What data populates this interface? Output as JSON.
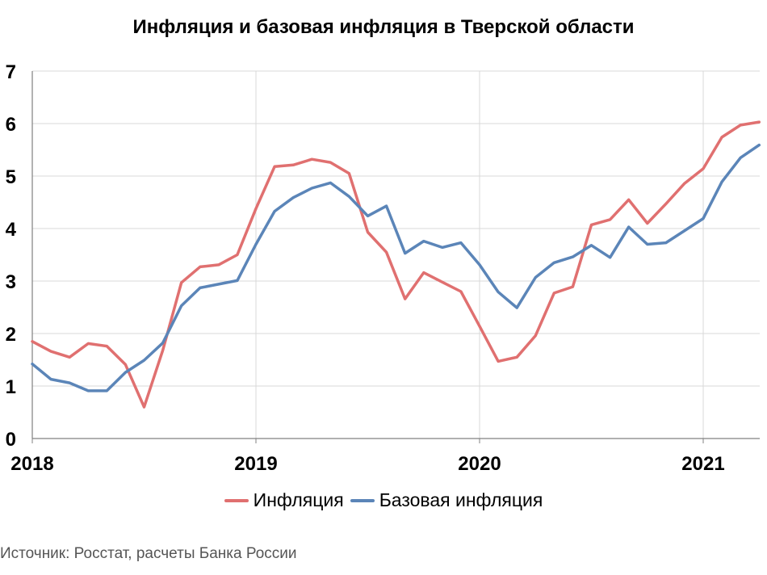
{
  "colors": {
    "inflation": "#E07070",
    "core": "#5B85B8",
    "grid": "#D9D9D9",
    "axis": "#808080"
  },
  "source": "Источник: Росстат, расчеты Банка России",
  "chart_data": {
    "type": "line",
    "title": "Инфляция и базовая инфляция в Тверской области",
    "xlabel": "",
    "ylabel": "",
    "ylim": [
      0,
      7
    ],
    "yticks": [
      "0",
      "1",
      "2",
      "3",
      "4",
      "5",
      "6",
      "7"
    ],
    "xticks": [
      "2018",
      "2019",
      "2020",
      "2021"
    ],
    "grid": true,
    "legend_position": "bottom",
    "x": [
      "2018-01",
      "2018-02",
      "2018-03",
      "2018-04",
      "2018-05",
      "2018-06",
      "2018-07",
      "2018-08",
      "2018-09",
      "2018-10",
      "2018-11",
      "2018-12",
      "2019-01",
      "2019-02",
      "2019-03",
      "2019-04",
      "2019-05",
      "2019-06",
      "2019-07",
      "2019-08",
      "2019-09",
      "2019-10",
      "2019-11",
      "2019-12",
      "2020-01",
      "2020-02",
      "2020-03",
      "2020-04",
      "2020-05",
      "2020-06",
      "2020-07",
      "2020-08",
      "2020-09",
      "2020-10",
      "2020-11",
      "2020-12",
      "2021-01",
      "2021-02",
      "2021-03",
      "2021-04"
    ],
    "series": [
      {
        "name": "Инфляция",
        "values": [
          1.85,
          1.66,
          1.55,
          1.81,
          1.76,
          1.41,
          0.6,
          1.68,
          2.97,
          3.27,
          3.31,
          3.5,
          4.38,
          5.18,
          5.21,
          5.32,
          5.26,
          5.05,
          3.93,
          3.55,
          2.66,
          3.16,
          2.98,
          2.8,
          2.14,
          1.47,
          1.55,
          1.96,
          2.77,
          2.89,
          4.07,
          4.17,
          4.55,
          4.1,
          4.47,
          4.86,
          5.14,
          5.74,
          5.97,
          6.03
        ]
      },
      {
        "name": "Базовая инфляция",
        "values": [
          1.42,
          1.13,
          1.06,
          0.91,
          0.91,
          1.26,
          1.49,
          1.82,
          2.53,
          2.87,
          2.94,
          3.01,
          3.7,
          4.33,
          4.59,
          4.77,
          4.87,
          4.61,
          4.24,
          4.43,
          3.53,
          3.76,
          3.64,
          3.73,
          3.31,
          2.79,
          2.49,
          3.07,
          3.35,
          3.46,
          3.68,
          3.45,
          4.03,
          3.7,
          3.73,
          3.96,
          4.19,
          4.89,
          5.35,
          5.59
        ]
      }
    ]
  }
}
